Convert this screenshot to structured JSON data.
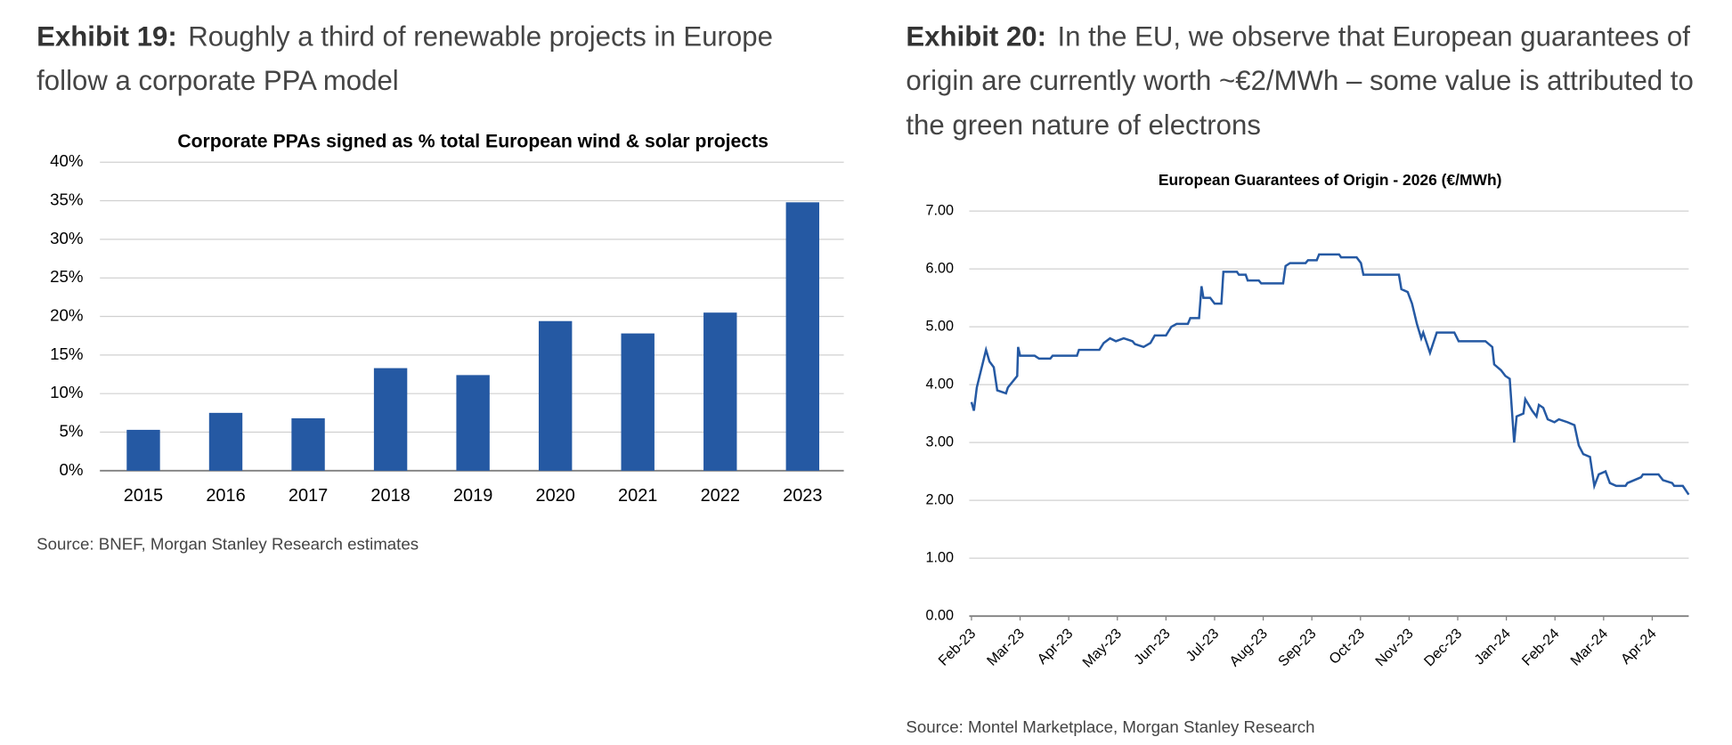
{
  "chart_data": [
    {
      "type": "bar",
      "exhibit": "Exhibit 19:",
      "title": "Roughly a third of renewable projects in Europe follow a corporate PPA model",
      "chart_title": "Corporate PPAs signed as % total European wind & solar projects",
      "categories": [
        "2015",
        "2016",
        "2017",
        "2018",
        "2019",
        "2020",
        "2021",
        "2022",
        "2023"
      ],
      "values": [
        5.3,
        7.5,
        6.8,
        13.3,
        12.4,
        19.4,
        17.8,
        20.5,
        34.8
      ],
      "color": "#2559a3",
      "ylim": [
        0,
        40
      ],
      "yticks": [
        {
          "value": 0,
          "label": "0%"
        },
        {
          "value": 5,
          "label": "5%"
        },
        {
          "value": 10,
          "label": "10%"
        },
        {
          "value": 15,
          "label": "15%"
        },
        {
          "value": 20,
          "label": "20%"
        },
        {
          "value": 25,
          "label": "25%"
        },
        {
          "value": 30,
          "label": "30%"
        },
        {
          "value": 35,
          "label": "35%"
        },
        {
          "value": 40,
          "label": "40%"
        }
      ],
      "grid": true,
      "source": "Source: BNEF, Morgan Stanley Research estimates"
    },
    {
      "type": "line",
      "exhibit": "Exhibit 20:",
      "title": "In the EU, we observe that European guarantees of origin are currently worth ~€2/MWh – some value is attributed to the green nature of electrons",
      "chart_title": "European Guarantees of Origin - 2026 (€/MWh)",
      "x": [
        0,
        0.05,
        0.11,
        0.3,
        0.37,
        0.46,
        0.53,
        0.71,
        0.75,
        0.94,
        0.96,
        1.0,
        1.3,
        1.39,
        1.62,
        1.67,
        2.17,
        2.21,
        2.63,
        2.72,
        2.85,
        2.97,
        3.13,
        3.31,
        3.36,
        3.54,
        3.68,
        3.77,
        4.0,
        4.11,
        4.22,
        4.45,
        4.5,
        4.68,
        4.73,
        4.77,
        4.91,
        5.0,
        5.14,
        5.18,
        5.46,
        5.5,
        5.64,
        5.68,
        5.91,
        5.96,
        6.41,
        6.46,
        6.55,
        6.87,
        6.92,
        7.1,
        7.15,
        7.56,
        7.6,
        7.92,
        8.01,
        8.06,
        8.79,
        8.84,
        8.97,
        9.06,
        9.16,
        9.25,
        9.29,
        9.43,
        9.57,
        9.93,
        10.02,
        10.57,
        10.71,
        10.75,
        10.89,
        10.98,
        11.07,
        11.16,
        11.21,
        11.35,
        11.39,
        11.53,
        11.62,
        11.67,
        11.76,
        11.85,
        11.99,
        12.08,
        12.26,
        12.4,
        12.49,
        12.58,
        12.72,
        12.81,
        12.9,
        13.04,
        13.13,
        13.26,
        13.45,
        13.49,
        13.77,
        13.81,
        14.13,
        14.22,
        14.41,
        14.45,
        14.63,
        14.75
      ],
      "series": [
        {
          "name": "European Guarantees of Origin - 2026",
          "color": "#2559a3",
          "values": [
            3.7,
            3.55,
            3.95,
            4.6,
            4.4,
            4.3,
            3.9,
            3.85,
            3.95,
            4.15,
            4.65,
            4.5,
            4.5,
            4.45,
            4.45,
            4.5,
            4.5,
            4.6,
            4.6,
            4.72,
            4.8,
            4.75,
            4.8,
            4.75,
            4.7,
            4.65,
            4.72,
            4.85,
            4.85,
            5.0,
            5.05,
            5.05,
            5.15,
            5.15,
            5.7,
            5.5,
            5.5,
            5.4,
            5.4,
            5.95,
            5.95,
            5.9,
            5.9,
            5.8,
            5.8,
            5.75,
            5.75,
            6.05,
            6.1,
            6.1,
            6.15,
            6.15,
            6.25,
            6.25,
            6.2,
            6.2,
            6.1,
            5.9,
            5.9,
            5.65,
            5.6,
            5.4,
            5.05,
            4.8,
            4.9,
            4.55,
            4.9,
            4.9,
            4.75,
            4.75,
            4.65,
            4.35,
            4.25,
            4.15,
            4.1,
            3.0,
            3.45,
            3.5,
            3.75,
            3.55,
            3.45,
            3.65,
            3.6,
            3.4,
            3.35,
            3.4,
            3.35,
            3.3,
            2.95,
            2.8,
            2.75,
            2.25,
            2.45,
            2.5,
            2.3,
            2.25,
            2.25,
            2.3,
            2.4,
            2.45,
            2.45,
            2.35,
            2.3,
            2.25,
            2.25,
            2.1
          ]
        }
      ],
      "xlim": [
        0,
        14.75
      ],
      "xticks": [
        {
          "value": 0,
          "label": "Feb-23"
        },
        {
          "value": 1,
          "label": "Mar-23"
        },
        {
          "value": 2,
          "label": "Apr-23"
        },
        {
          "value": 3,
          "label": "May-23"
        },
        {
          "value": 4,
          "label": "Jun-23"
        },
        {
          "value": 5,
          "label": "Jul-23"
        },
        {
          "value": 6,
          "label": "Aug-23"
        },
        {
          "value": 7,
          "label": "Sep-23"
        },
        {
          "value": 8,
          "label": "Oct-23"
        },
        {
          "value": 9,
          "label": "Nov-23"
        },
        {
          "value": 10,
          "label": "Dec-23"
        },
        {
          "value": 11,
          "label": "Jan-24"
        },
        {
          "value": 12,
          "label": "Feb-24"
        },
        {
          "value": 13,
          "label": "Mar-24"
        },
        {
          "value": 14,
          "label": "Apr-24"
        }
      ],
      "ylim": [
        0,
        7
      ],
      "yticks": [
        {
          "value": 0,
          "label": "0.00"
        },
        {
          "value": 1,
          "label": "1.00"
        },
        {
          "value": 2,
          "label": "2.00"
        },
        {
          "value": 3,
          "label": "3.00"
        },
        {
          "value": 4,
          "label": "4.00"
        },
        {
          "value": 5,
          "label": "5.00"
        },
        {
          "value": 6,
          "label": "6.00"
        },
        {
          "value": 7,
          "label": "7.00"
        }
      ],
      "grid": true,
      "source": "Source: Montel Marketplace, Morgan Stanley Research"
    }
  ]
}
